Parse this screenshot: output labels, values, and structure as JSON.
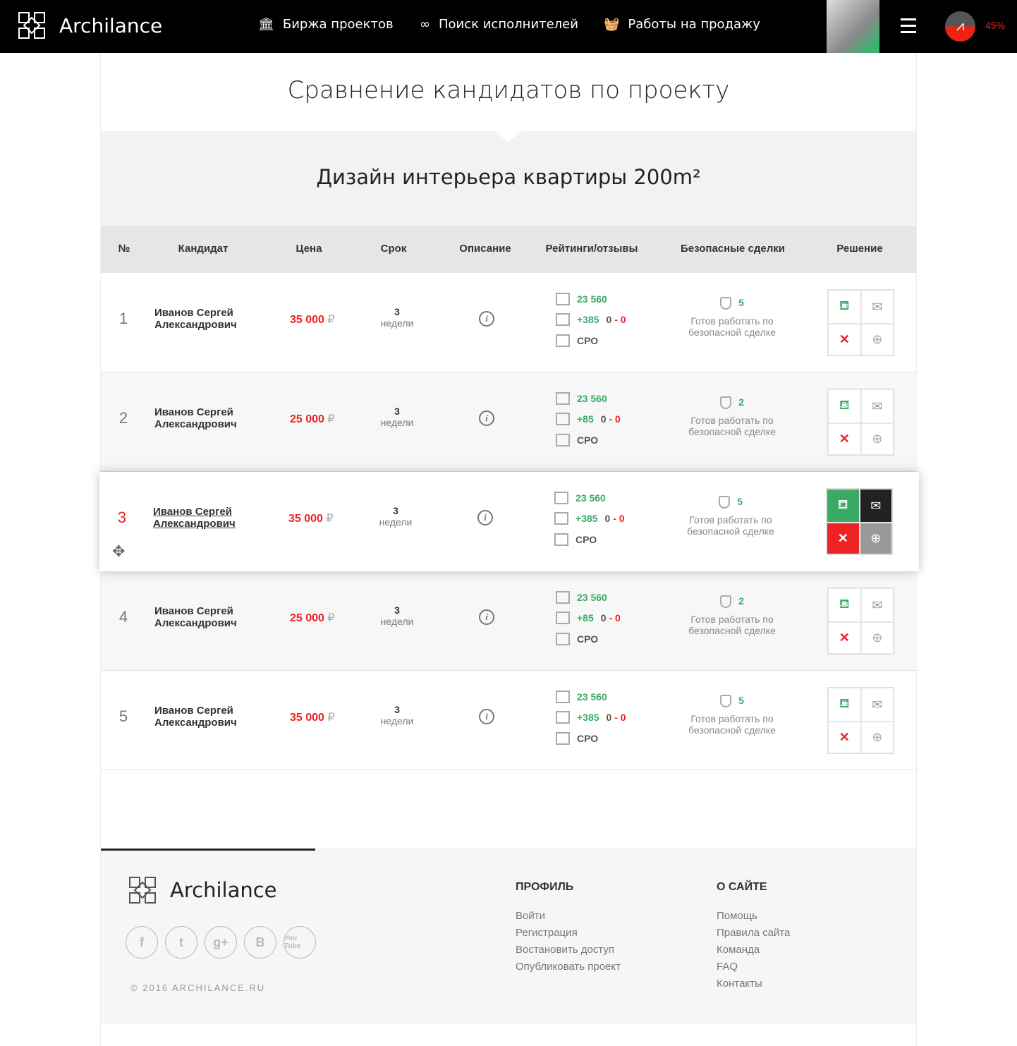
{
  "header": {
    "brand": "Archilance",
    "nav": [
      {
        "label": "Биржа проектов",
        "icon": "column-icon"
      },
      {
        "label": "Поиск исполнителей",
        "icon": "binoculars-icon"
      },
      {
        "label": "Работы на продажу",
        "icon": "basket-icon"
      }
    ],
    "progress": "45%"
  },
  "page": {
    "title": "Сравнение кандидатов по проекту",
    "project": "Дизайн интерьера квартиры 200m²"
  },
  "table": {
    "columns": [
      "№",
      "Кандидат",
      "Цена",
      "Срок",
      "Описание",
      "Рейтинги/отзывы",
      "Безопасные сделки",
      "Решение"
    ],
    "rows": [
      {
        "num": "1",
        "name1": "Иванов Сергей",
        "name2": "Александрович",
        "price": "35 000",
        "currency": "₽",
        "term": "3",
        "term_unit": "недели",
        "rating": "23 560",
        "reviews_pos": "+385",
        "reviews_neu": "0",
        "reviews_neg": "0",
        "sro": "СРО",
        "safe_count": "5",
        "safe_text": "Готов работать по безопасной сделке"
      },
      {
        "num": "2",
        "name1": "Иванов Сергей",
        "name2": "Александрович",
        "price": "25 000",
        "currency": "₽",
        "term": "3",
        "term_unit": "недели",
        "rating": "23 560",
        "reviews_pos": "+85",
        "reviews_neu": "0",
        "reviews_neg": "0",
        "sro": "СРО",
        "safe_count": "2",
        "safe_text": "Готов работать по безопасной сделке"
      },
      {
        "num": "3",
        "name1": "Иванов Сергей",
        "name2": "Александрович",
        "price": "35 000",
        "currency": "₽",
        "term": "3",
        "term_unit": "недели",
        "rating": "23 560",
        "reviews_pos": "+385",
        "reviews_neu": "0",
        "reviews_neg": "0",
        "sro": "СРО",
        "safe_count": "5",
        "safe_text": "Готов работать по безопасной сделке",
        "active": true
      },
      {
        "num": "4",
        "name1": "Иванов Сергей",
        "name2": "Александрович",
        "price": "25 000",
        "currency": "₽",
        "term": "3",
        "term_unit": "недели",
        "rating": "23 560",
        "reviews_pos": "+85",
        "reviews_neu": "0",
        "reviews_neg": "0",
        "sro": "СРО",
        "safe_count": "2",
        "safe_text": "Готов работать по безопасной сделке"
      },
      {
        "num": "5",
        "name1": "Иванов Сергей",
        "name2": "Александрович",
        "price": "35 000",
        "currency": "₽",
        "term": "3",
        "term_unit": "недели",
        "rating": "23 560",
        "reviews_pos": "+385",
        "reviews_neu": "0",
        "reviews_neg": "0",
        "sro": "СРО",
        "safe_count": "5",
        "safe_text": "Готов работать по безопасной сделке"
      }
    ]
  },
  "colors": {
    "green": "#3aaa66",
    "red": "#e22222",
    "dark": "#222222"
  },
  "footer": {
    "brand": "Archilance",
    "social": [
      "f",
      "t",
      "g+",
      "B",
      "You Tube"
    ],
    "copyright": "© 2016 ARCHILANCE.RU",
    "profile": {
      "title": "ПРОФИЛЬ",
      "links": [
        "Войти",
        "Регистрация",
        "Востановить доступ",
        "Опубликовать проект"
      ]
    },
    "about": {
      "title": "О САЙТЕ",
      "links": [
        "Помощь",
        "Правила сайта",
        "Команда",
        "FAQ",
        "Контакты"
      ]
    }
  }
}
